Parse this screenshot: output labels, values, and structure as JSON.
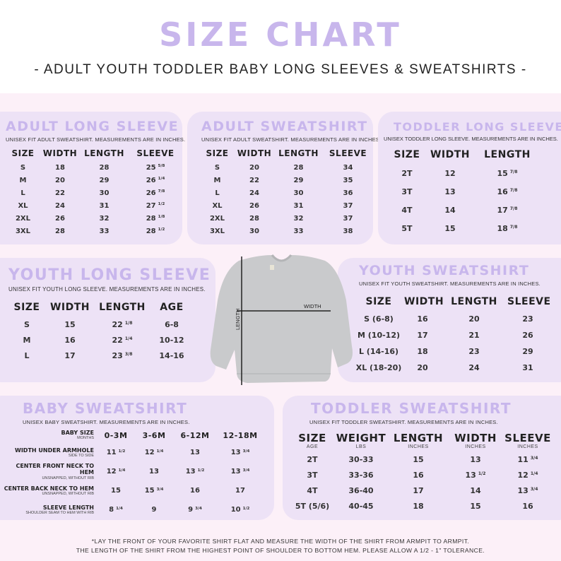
{
  "header": {
    "title": "SIZE CHART",
    "subtitle": "- ADULT YOUTH TODDLER BABY LONG SLEEVES & SWEATSHIRTS -"
  },
  "colors": {
    "title_lavender": "#c8b6ec",
    "panel": "#ede2f6",
    "background": "#fcf0f8"
  },
  "panels": {
    "adult_long_sleeve": {
      "title": "ADULT LONG SLEEVE",
      "subtitle": "Unisex fit adult sweatshirt. Measurements are in inches.",
      "columns": [
        "SIZE",
        "WIDTH",
        "LENGTH",
        "SLEEVE"
      ],
      "rows": [
        [
          "S",
          "18",
          "28",
          "25 5/8"
        ],
        [
          "M",
          "20",
          "29",
          "26 1/4"
        ],
        [
          "L",
          "22",
          "30",
          "26 7/8"
        ],
        [
          "XL",
          "24",
          "31",
          "27 1/2"
        ],
        [
          "2XL",
          "26",
          "32",
          "28 1/8"
        ],
        [
          "3XL",
          "28",
          "33",
          "28 1/2"
        ]
      ]
    },
    "adult_sweatshirt": {
      "title": "ADULT SWEATSHIRT",
      "subtitle": "Unisex fit adult sweatshirt. Measurements are in inches.",
      "columns": [
        "SIZE",
        "WIDTH",
        "LENGTH",
        "SLEEVE"
      ],
      "rows": [
        [
          "S",
          "20",
          "28",
          "34"
        ],
        [
          "M",
          "22",
          "29",
          "35"
        ],
        [
          "L",
          "24",
          "30",
          "36"
        ],
        [
          "XL",
          "26",
          "31",
          "37"
        ],
        [
          "2XL",
          "28",
          "32",
          "37"
        ],
        [
          "3XL",
          "30",
          "33",
          "38"
        ]
      ]
    },
    "toddler_long_sleeve": {
      "title": "TODDLER LONG SLEEVE",
      "subtitle": "Unisex toddler long sleeve. Measurements are in inches.",
      "columns": [
        "SIZE",
        "WIDTH",
        "LENGTH"
      ],
      "rows": [
        [
          "2T",
          "12",
          "15 7/8"
        ],
        [
          "3T",
          "13",
          "16 7/8"
        ],
        [
          "4T",
          "14",
          "17 7/8"
        ],
        [
          "5T",
          "15",
          "18 7/8"
        ]
      ]
    },
    "youth_long_sleeve": {
      "title": "YOUTH LONG SLEEVE",
      "subtitle": "Unisex fit youth long sleeve. Measurements are in inches.",
      "columns": [
        "SIZE",
        "WIDTH",
        "LENGTH",
        "AGE"
      ],
      "rows": [
        [
          "S",
          "15",
          "22 1/8",
          "6-8"
        ],
        [
          "M",
          "16",
          "22 1/4",
          "10-12"
        ],
        [
          "L",
          "17",
          "23 3/8",
          "14-16"
        ]
      ]
    },
    "youth_sweatshirt": {
      "title": "YOUTH SWEATSHIRT",
      "subtitle": "Unisex fit youth sweatshirt. Measurements are in inches.",
      "columns": [
        "SIZE",
        "WIDTH",
        "LENGTH",
        "SLEEVE"
      ],
      "rows": [
        [
          "S (6-8)",
          "16",
          "20",
          "23"
        ],
        [
          "M (10-12)",
          "17",
          "21",
          "26"
        ],
        [
          "L (14-16)",
          "18",
          "23",
          "29"
        ],
        [
          "XL (18-20)",
          "20",
          "24",
          "31"
        ]
      ]
    },
    "baby_sweatshirt": {
      "title": "BABY SWEATSHIRT",
      "subtitle": "Unisex baby sweatshirt. Measurements are in inches.",
      "header": {
        "label": "BABY SIZE",
        "sub": "months",
        "columns": [
          "0-3M",
          "3-6M",
          "6-12M",
          "12-18M"
        ]
      },
      "rows": [
        {
          "label": "WIDTH UNDER ARMHOLE",
          "sub": "side to side",
          "values": [
            "11 1/2",
            "12 1/4",
            "13",
            "13 3/4"
          ]
        },
        {
          "label": "CENTER FRONT NECK TO HEM",
          "sub": "unsnapped, without rib",
          "values": [
            "12 1/4",
            "13",
            "13 1/2",
            "13 3/4"
          ]
        },
        {
          "label": "CENTER BACK NECK TO HEM",
          "sub": "unsnapped, without rib",
          "values": [
            "15",
            "15 3/4",
            "16",
            "17"
          ]
        },
        {
          "label": "SLEEVE LENGTH",
          "sub": "shoulder seam to hem with rib",
          "values": [
            "8 1/4",
            "9",
            "9 3/4",
            "10 1/2"
          ]
        }
      ]
    },
    "toddler_sweatshirt": {
      "title": "TODDLER SWEATSHIRT",
      "subtitle": "Unisex fit toddler sweatshirt. Measurements are in inches.",
      "columns": [
        "SIZE",
        "WEIGHT",
        "LENGTH",
        "WIDTH",
        "SLEEVE"
      ],
      "column_units": [
        "age",
        "lbs",
        "inches",
        "inches",
        "inches"
      ],
      "rows": [
        [
          "2T",
          "30-33",
          "15",
          "13",
          "11 3/4"
        ],
        [
          "3T",
          "33-36",
          "16",
          "13 1/2",
          "12 1/4"
        ],
        [
          "4T",
          "36-40",
          "17",
          "14",
          "13 3/4"
        ],
        [
          "5T (5/6)",
          "40-45",
          "18",
          "15",
          "16"
        ]
      ]
    }
  },
  "diagram": {
    "width_label": "WIDTH",
    "length_label": "LENGTH"
  },
  "footer": {
    "line1": "*Lay the front of your favorite shirt flat and measure the width of the shirt from armpit to armpit.",
    "line2": "The length of the shirt from the highest point of shoulder to bottom hem. Please allow a 1/2 - 1\" tolerance."
  }
}
